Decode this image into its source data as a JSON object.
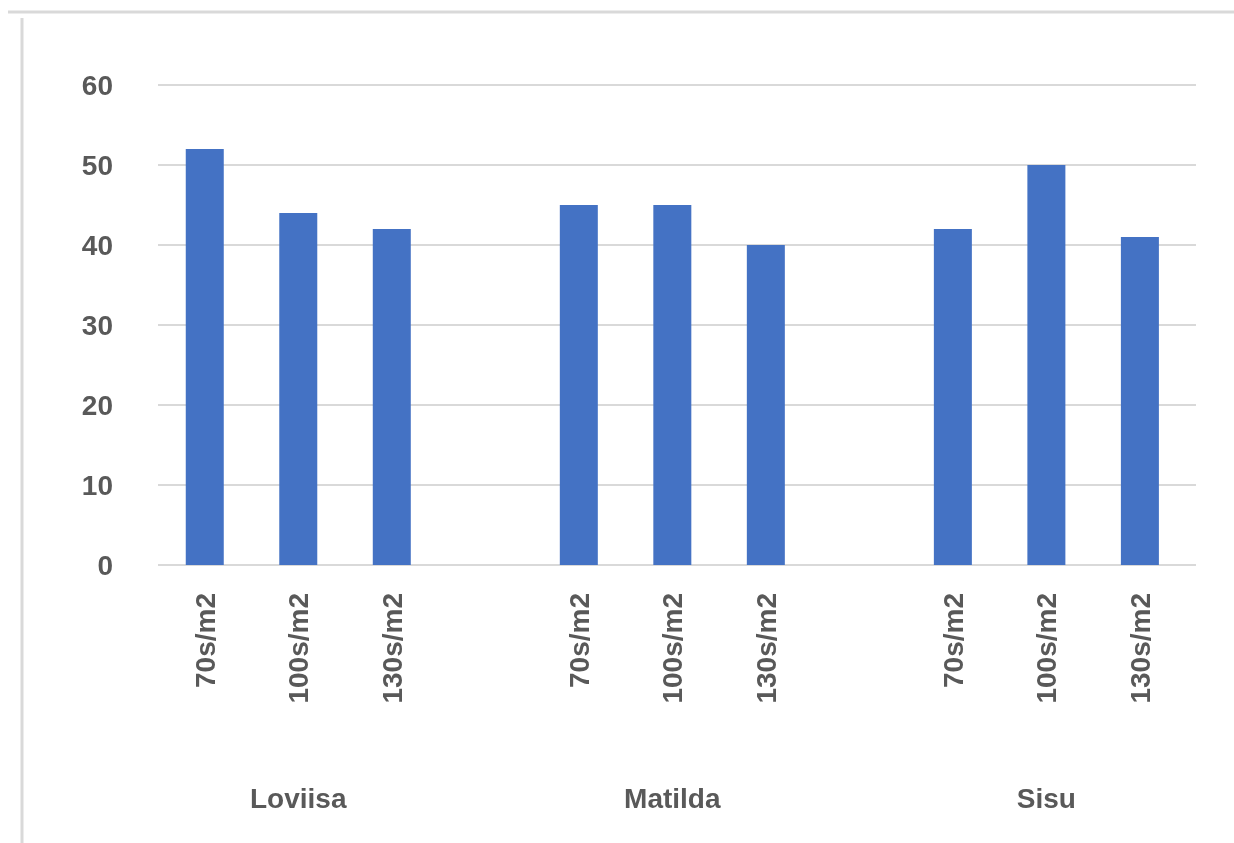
{
  "chart_data": {
    "type": "bar",
    "categories": [
      "70s/m2",
      "100s/m2",
      "130s/m2",
      "70s/m2",
      "100s/m2",
      "130s/m2",
      "70s/m2",
      "100s/m2",
      "130s/m2"
    ],
    "values": [
      52,
      44,
      42,
      45,
      45,
      40,
      42,
      50,
      41
    ],
    "color": "#4472c4",
    "ylim": [
      0,
      60
    ],
    "yticks": [
      0,
      10,
      20,
      30,
      40,
      50,
      60
    ],
    "grid": "y",
    "annotations": [
      "Loviisa",
      "Matilda",
      "Sisu"
    ]
  }
}
